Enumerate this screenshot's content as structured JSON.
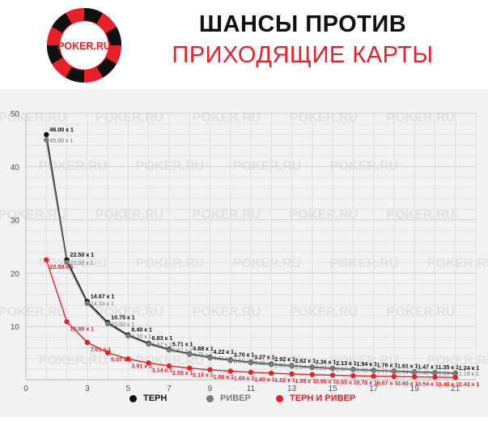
{
  "header": {
    "logo_text": "POKER.RU",
    "title_line1": "ШАНСЫ ПРОТИВ",
    "title_line2": "ПРИХОДЯЩИЕ КАРТЫ"
  },
  "watermark_text": "POKER.RU",
  "colors": {
    "turn": "#111111",
    "river": "#7a7a7a",
    "turn_and_river": "#e8202a",
    "accent": "#e8202a"
  },
  "chart_data": {
    "type": "line",
    "title": "ШАНСЫ ПРОТИВ ПРИХОДЯЩИЕ КАРТЫ",
    "xlim": [
      0,
      22
    ],
    "ylim": [
      0,
      50
    ],
    "x_ticks": [
      "0",
      "3",
      "5",
      "7",
      "9",
      "11",
      "13",
      "15",
      "17",
      "19",
      "21"
    ],
    "y_ticks": [
      "10",
      "20",
      "30",
      "40",
      "50"
    ],
    "grid": true,
    "legend_position": "bottom",
    "series": [
      {
        "name": "ТЕРН",
        "color": "#111111",
        "x": [
          1,
          2,
          3,
          4,
          5,
          6,
          7,
          8,
          9,
          10,
          11,
          12,
          13,
          14,
          15,
          16,
          17,
          18,
          19,
          20,
          21
        ],
        "values": [
          46.0,
          22.5,
          14.67,
          10.75,
          8.4,
          6.83,
          5.71,
          4.88,
          4.22,
          3.7,
          3.27,
          2.92,
          2.62,
          2.36,
          2.13,
          1.94,
          1.76,
          1.61,
          1.47,
          1.35,
          1.24
        ],
        "labels": [
          "46.00 к 1",
          "22.50 к 1",
          "14.67 к 1",
          "10.75 к 1",
          "8.40 к 1",
          "6.83 к 1",
          "5.71 к 1",
          "4.88 к 1",
          "4.22 к 1",
          "3.70 к 1",
          "3.27 к 1",
          "2.92 к 1",
          "2.62 к 1",
          "2.36 к 1",
          "2.13 к 1",
          "1.94 к 1",
          "1.76 к 1",
          "1.61 к 1",
          "1.47 к 1",
          "1.35 к 1",
          "1.24 к 1"
        ]
      },
      {
        "name": "РИВЕР",
        "color": "#7a7a7a",
        "x": [
          1,
          2,
          3,
          4,
          5,
          6,
          7,
          8,
          9,
          10,
          11,
          12,
          13,
          14,
          15,
          16,
          17,
          18,
          19,
          20,
          21
        ],
        "values": [
          45.0,
          22.0,
          14.33,
          10.5,
          8.2,
          6.67,
          5.57,
          4.75,
          4.11,
          3.6,
          3.18,
          2.83,
          2.54,
          2.29,
          2.07,
          1.88,
          1.71,
          1.54,
          1.42,
          1.3,
          1.19
        ],
        "labels": [
          "45.00 к 1",
          "22.00 к 1",
          "14.33 к 1",
          "10.50 к 1",
          "8.20 к 1",
          "6.67 к 1",
          "5.57 к 1",
          "4.75 к 1",
          "4.11 к 1",
          "3.60 к 1",
          "3.18 к 1",
          "2.83 к 1",
          "2.54 к 1",
          "2.29 к 1",
          "2.07 к 1",
          "1.88 к 1",
          "1.71 к 1",
          "1.54 к 1",
          "1.42 к 1",
          "1.30 к 1",
          "1.19 к 1"
        ]
      },
      {
        "name": "ТЕРН И РИВЕР",
        "color": "#e8202a",
        "x": [
          1,
          2,
          3,
          4,
          5,
          6,
          7,
          8,
          9,
          10,
          11,
          12,
          13,
          14,
          15,
          16,
          17,
          18,
          19,
          20,
          21
        ],
        "values": [
          22.5,
          10.88,
          7.01,
          5.07,
          3.91,
          3.14,
          2.59,
          2.18,
          1.86,
          1.6,
          1.4,
          1.22,
          1.08,
          0.95,
          0.85,
          0.75,
          0.67,
          0.6,
          0.54,
          0.48,
          0.43
        ],
        "labels": [
          "22.50 к 1",
          "10.88 к 1",
          "7.01 к 1",
          "5.07 к 1",
          "3.91 к 1",
          "3.14 к 1",
          "2.59 к 1",
          "2.18 к 1",
          "1.86 к 1",
          "1.60 к 1",
          "1.40 к 1",
          "1.22 к 1",
          "1.08 к 1",
          "0.95 к 1",
          "0.85 к 1",
          "0.75 к 1",
          "0.67 к 1",
          "0.60 к 1",
          "0.54 к 1",
          "0.48 к 1",
          "0.43 к 1"
        ]
      }
    ]
  }
}
